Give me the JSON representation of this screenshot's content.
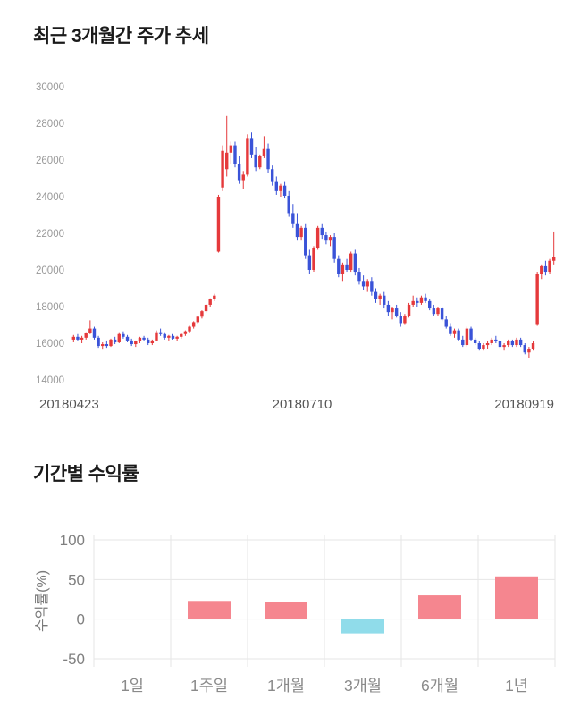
{
  "page": {
    "section1_title": "최근 3개월간 주가 추세",
    "section2_title": "기간별 수익률"
  },
  "chart_data": [
    {
      "type": "candlestick",
      "title": "최근 3개월간 주가 추세",
      "x_tick_labels": [
        "20180423",
        "20180710",
        "20180919"
      ],
      "y_ticks": [
        30000,
        28000,
        26000,
        24000,
        22000,
        20000,
        18000,
        16000,
        14000
      ],
      "ylim": [
        14000,
        30000
      ],
      "grid": false,
      "up_color": "#e5393b",
      "down_color": "#3a53d8",
      "candles": [
        [
          16200,
          16450,
          16050,
          16350
        ],
        [
          16350,
          16500,
          16150,
          16200
        ],
        [
          16200,
          16400,
          16000,
          16300
        ],
        [
          16300,
          16600,
          16200,
          16550
        ],
        [
          16550,
          17250,
          16500,
          16800
        ],
        [
          16800,
          16900,
          16200,
          16300
        ],
        [
          16300,
          16400,
          15750,
          15850
        ],
        [
          15850,
          16050,
          15650,
          15950
        ],
        [
          15950,
          16150,
          15750,
          15850
        ],
        [
          15850,
          16250,
          15800,
          16200
        ],
        [
          16200,
          16350,
          15950,
          16050
        ],
        [
          16050,
          16600,
          16000,
          16500
        ],
        [
          16500,
          16650,
          16250,
          16350
        ],
        [
          16350,
          16450,
          16050,
          16150
        ],
        [
          16150,
          16250,
          15850,
          15950
        ],
        [
          15950,
          16150,
          15800,
          16100
        ],
        [
          16100,
          16350,
          16000,
          16300
        ],
        [
          16300,
          16400,
          16100,
          16200
        ],
        [
          16200,
          16300,
          15900,
          16000
        ],
        [
          16000,
          16200,
          15900,
          16150
        ],
        [
          16150,
          16700,
          16100,
          16600
        ],
        [
          16600,
          16800,
          16400,
          16500
        ],
        [
          16500,
          16600,
          16200,
          16300
        ],
        [
          16300,
          16450,
          16150,
          16400
        ],
        [
          16400,
          16500,
          16200,
          16250
        ],
        [
          16250,
          16400,
          16100,
          16350
        ],
        [
          16350,
          16550,
          16250,
          16500
        ],
        [
          16500,
          16700,
          16400,
          16650
        ],
        [
          16650,
          16950,
          16550,
          16900
        ],
        [
          16900,
          17200,
          16800,
          17150
        ],
        [
          17150,
          17500,
          17050,
          17450
        ],
        [
          17450,
          17800,
          17350,
          17750
        ],
        [
          17750,
          18150,
          17650,
          18100
        ],
        [
          18100,
          18450,
          18000,
          18400
        ],
        [
          18400,
          18700,
          18300,
          18600
        ],
        [
          21000,
          24100,
          20950,
          24000
        ],
        [
          24500,
          26800,
          24300,
          26500
        ],
        [
          25500,
          28400,
          25100,
          26400
        ],
        [
          26400,
          27000,
          25800,
          26800
        ],
        [
          26800,
          27000,
          25600,
          25800
        ],
        [
          25800,
          26200,
          24700,
          24900
        ],
        [
          24900,
          25400,
          24400,
          25200
        ],
        [
          25200,
          27400,
          25100,
          27200
        ],
        [
          27200,
          27500,
          26100,
          26300
        ],
        [
          26300,
          26700,
          25400,
          25600
        ],
        [
          25600,
          26300,
          25500,
          26200
        ],
        [
          26200,
          27300,
          26100,
          26600
        ],
        [
          26600,
          26900,
          25300,
          25500
        ],
        [
          25500,
          25700,
          24600,
          24800
        ],
        [
          24800,
          25100,
          24100,
          24300
        ],
        [
          24300,
          24700,
          24000,
          24600
        ],
        [
          24600,
          24800,
          23900,
          24050
        ],
        [
          24050,
          24300,
          22900,
          23100
        ],
        [
          23100,
          23600,
          22300,
          22500
        ],
        [
          22500,
          23100,
          21600,
          21800
        ],
        [
          21800,
          22400,
          21600,
          22300
        ],
        [
          22300,
          22500,
          20600,
          20800
        ],
        [
          20800,
          21100,
          19800,
          20000
        ],
        [
          20000,
          21300,
          19900,
          21200
        ],
        [
          21200,
          22400,
          21100,
          22300
        ],
        [
          22300,
          22500,
          21700,
          21900
        ],
        [
          21900,
          22100,
          21400,
          21600
        ],
        [
          21600,
          21900,
          21300,
          21800
        ],
        [
          21800,
          22000,
          20400,
          20600
        ],
        [
          20600,
          20800,
          19600,
          19800
        ],
        [
          19800,
          20400,
          19400,
          20300
        ],
        [
          20300,
          20600,
          19900,
          20000
        ],
        [
          20000,
          21000,
          19900,
          20900
        ],
        [
          20900,
          21100,
          19700,
          19900
        ],
        [
          19900,
          20100,
          19200,
          19400
        ],
        [
          19400,
          19700,
          18900,
          19100
        ],
        [
          19100,
          19500,
          18800,
          19400
        ],
        [
          19400,
          19600,
          18600,
          18800
        ],
        [
          18800,
          19000,
          18200,
          18400
        ],
        [
          18400,
          18700,
          18100,
          18600
        ],
        [
          18600,
          18800,
          17900,
          18100
        ],
        [
          18100,
          18300,
          17500,
          17700
        ],
        [
          17700,
          18000,
          17300,
          17900
        ],
        [
          17900,
          18100,
          17400,
          17500
        ],
        [
          17500,
          17700,
          16900,
          17100
        ],
        [
          17100,
          17600,
          17000,
          17500
        ],
        [
          17500,
          18200,
          17400,
          18100
        ],
        [
          18100,
          18600,
          18000,
          18300
        ],
        [
          18300,
          18500,
          18000,
          18200
        ],
        [
          18200,
          18600,
          18100,
          18500
        ],
        [
          18500,
          18700,
          18200,
          18300
        ],
        [
          18300,
          18400,
          17800,
          17900
        ],
        [
          17900,
          18100,
          17500,
          17600
        ],
        [
          17600,
          18000,
          17500,
          17900
        ],
        [
          17900,
          18000,
          17200,
          17300
        ],
        [
          17300,
          17500,
          16800,
          16900
        ],
        [
          16900,
          17100,
          16400,
          16500
        ],
        [
          16500,
          16800,
          16300,
          16700
        ],
        [
          16700,
          16800,
          16100,
          16200
        ],
        [
          16200,
          16400,
          15800,
          15900
        ],
        [
          15900,
          16900,
          15800,
          16800
        ],
        [
          16800,
          16900,
          16100,
          16200
        ],
        [
          16200,
          16300,
          15900,
          16000
        ],
        [
          16000,
          16100,
          15600,
          15700
        ],
        [
          15700,
          16000,
          15600,
          15900
        ],
        [
          15900,
          16100,
          15700,
          16000
        ],
        [
          16000,
          16300,
          15900,
          16200
        ],
        [
          16200,
          16400,
          16000,
          16100
        ],
        [
          16100,
          16200,
          15700,
          15800
        ],
        [
          15800,
          16000,
          15600,
          15900
        ],
        [
          15900,
          16200,
          15800,
          16100
        ],
        [
          16100,
          16200,
          15800,
          15900
        ],
        [
          15900,
          16300,
          15800,
          16200
        ],
        [
          16200,
          16300,
          15800,
          15900
        ],
        [
          15900,
          16000,
          15400,
          15500
        ],
        [
          15500,
          15800,
          15200,
          15700
        ],
        [
          15700,
          16100,
          15600,
          16000
        ],
        [
          17000,
          19900,
          16950,
          19800
        ],
        [
          19800,
          20300,
          19500,
          20200
        ],
        [
          20200,
          20500,
          19700,
          19900
        ],
        [
          19900,
          20600,
          19800,
          20500
        ],
        [
          20500,
          22100,
          20300,
          20700
        ]
      ]
    },
    {
      "type": "bar",
      "title": "기간별 수익률",
      "ylabel": "수익률(%)",
      "categories": [
        "1일",
        "1주일",
        "1개월",
        "3개월",
        "6개월",
        "1년"
      ],
      "values": [
        0,
        23,
        22,
        -18,
        30,
        54
      ],
      "y_ticks": [
        100,
        50,
        0,
        -50
      ],
      "ylim": [
        -60,
        105
      ],
      "grid": true,
      "legend": "none",
      "positive_color": "#f5868f",
      "negative_color": "#90dcea",
      "grid_color": "#e6e6e6"
    }
  ]
}
